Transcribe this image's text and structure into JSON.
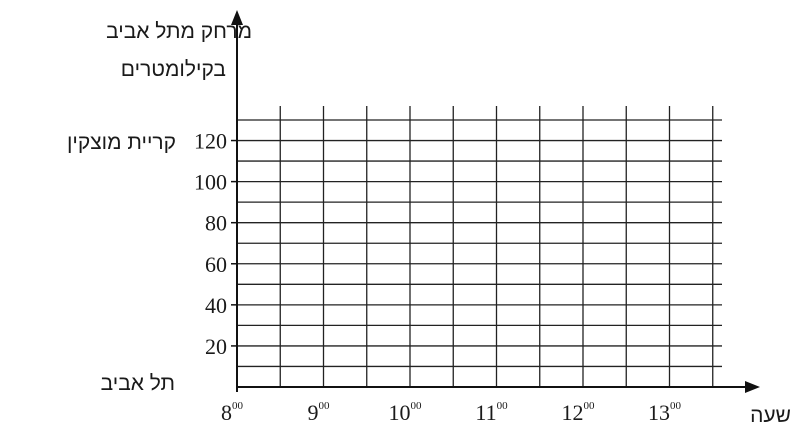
{
  "chart_data": {
    "type": "line",
    "title": "",
    "ylabel_lines": [
      "מרחק מתל אביב",
      "בקילומטרים"
    ],
    "xlabel": "שעה",
    "x_ticks": [
      {
        "hour": "8",
        "min": "00"
      },
      {
        "hour": "9",
        "min": "00"
      },
      {
        "hour": "10",
        "min": "00"
      },
      {
        "hour": "11",
        "min": "00"
      },
      {
        "hour": "12",
        "min": "00"
      },
      {
        "hour": "13",
        "min": "00"
      }
    ],
    "y_ticks": [
      "20",
      "40",
      "60",
      "80",
      "100",
      "120"
    ],
    "xlim": [
      8,
      13.5
    ],
    "ylim": [
      0,
      130
    ],
    "grid": true,
    "series": [],
    "annotations": {
      "top_place": "קריית מוצקין",
      "bottom_place": "תל אביב"
    }
  }
}
